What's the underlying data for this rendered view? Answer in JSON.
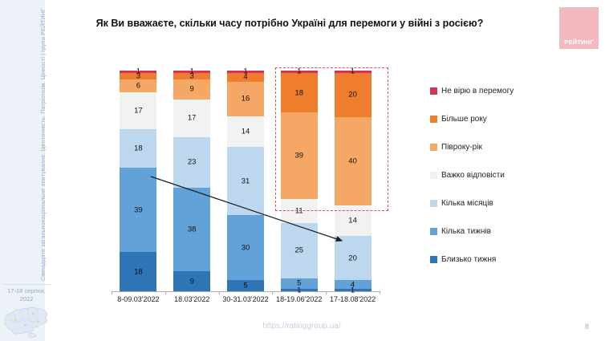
{
  "sidebar": {
    "vertical_text": "Сімнадцяте загальнонаціональне опитування: Ідентичність. Патріотизм. Цінності | група РЕЙТИНГ",
    "date": "17-18 серпня, 2022"
  },
  "header": {
    "title": "Як Ви вважаєте, скільки часу потрібно Україні для перемоги у війні з росією?"
  },
  "logo": {
    "text": "РЕЙТИНГ",
    "bg": "#F3B9BE"
  },
  "footer": {
    "url": "https://ratinggroup.ua/",
    "page": "8"
  },
  "chart_data": {
    "type": "bar",
    "stacked": true,
    "units": "percent",
    "title": "Як Ви вважаєте, скільки часу потрібно Україні для перемоги у війні з росією?",
    "categories": [
      "8-09.03'2022",
      "18.03'2022",
      "30-31.03'2022",
      "18-19.06'2022",
      "17-18.08'2022"
    ],
    "series": [
      {
        "name": "Близько тижня",
        "color": "#2E75B6",
        "values": [
          18,
          9,
          5,
          1,
          1
        ]
      },
      {
        "name": "Кілька тижнів",
        "color": "#63A2D8",
        "values": [
          39,
          38,
          30,
          5,
          4
        ]
      },
      {
        "name": "Кілька місяців",
        "color": "#BDD7EE",
        "values": [
          18,
          23,
          31,
          25,
          20
        ]
      },
      {
        "name": "Важко відповісти",
        "color": "#F2F2F2",
        "values": [
          17,
          17,
          14,
          11,
          14
        ]
      },
      {
        "name": "Півроку-рік",
        "color": "#F5A765",
        "values": [
          6,
          9,
          16,
          39,
          40
        ]
      },
      {
        "name": "Більше року",
        "color": "#EF7D2E",
        "values": [
          3,
          3,
          4,
          18,
          20
        ]
      },
      {
        "name": "Не вірю в перемогу",
        "color": "#D23359",
        "values": [
          1,
          1,
          1,
          1,
          1
        ]
      }
    ],
    "legend_position": "right",
    "legend_order_top_to_bottom": [
      "Не вірю в перемогу",
      "Більше року",
      "Півроку-рік",
      "Важко відповісти",
      "Кілька місяців",
      "Кілька тижнів",
      "Близько тижня"
    ],
    "annotations": {
      "highlight_box": {
        "style": "dashed",
        "color": "#DF5050",
        "categories": [
          "18-19.06'2022",
          "17-18.08'2022"
        ]
      },
      "trend_arrow": {
        "from_category": "8-09.03'2022",
        "to_category": "17-18.08'2022",
        "color": "#1a1a1a"
      }
    }
  }
}
